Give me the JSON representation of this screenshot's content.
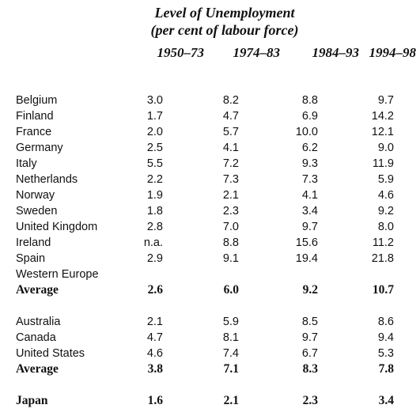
{
  "title_line1": "Level of Unemployment",
  "title_line2": "(per cent of labour force)",
  "columns": [
    "1950–73",
    "1974–83",
    "1984–93",
    "1994–98"
  ],
  "rows": [
    {
      "label": "Belgium",
      "values": [
        "3.0",
        "8.2",
        "8.8",
        "9.7"
      ]
    },
    {
      "label": "Finland",
      "values": [
        "1.7",
        "4.7",
        "6.9",
        "14.2"
      ]
    },
    {
      "label": "France",
      "values": [
        "2.0",
        "5.7",
        "10.0",
        "12.1"
      ]
    },
    {
      "label": "Germany",
      "values": [
        "2.5",
        "4.1",
        "6.2",
        "9.0"
      ]
    },
    {
      "label": "Italy",
      "values": [
        "5.5",
        "7.2",
        "9.3",
        "11.9"
      ]
    },
    {
      "label": "Netherlands",
      "values": [
        "2.2",
        "7.3",
        "7.3",
        "5.9"
      ]
    },
    {
      "label": "Norway",
      "values": [
        "1.9",
        "2.1",
        "4.1",
        "4.6"
      ]
    },
    {
      "label": "Sweden",
      "values": [
        "1.8",
        "2.3",
        "3.4",
        "9.2"
      ]
    },
    {
      "label": "United Kingdom",
      "values": [
        "2.8",
        "7.0",
        "9.7",
        "8.0"
      ]
    },
    {
      "label": "Ireland",
      "values": [
        "n.a.",
        "8.8",
        "15.6",
        "11.2"
      ]
    },
    {
      "label": "Spain",
      "values": [
        "2.9",
        "9.1",
        "19.4",
        "21.8"
      ]
    },
    {
      "label": "Western Europe",
      "values": [
        "",
        "",
        "",
        ""
      ]
    },
    {
      "label": "Average",
      "values": [
        "2.6",
        "6.0",
        "9.2",
        "10.7"
      ]
    },
    {
      "label": "Australia",
      "values": [
        "2.1",
        "5.9",
        "8.5",
        "8.6"
      ]
    },
    {
      "label": "Canada",
      "values": [
        "4.7",
        "8.1",
        "9.7",
        "9.4"
      ]
    },
    {
      "label": "United States",
      "values": [
        "4.6",
        "7.4",
        "6.7",
        "5.3"
      ]
    },
    {
      "label": "Average",
      "values": [
        "3.8",
        "7.1",
        "8.3",
        "7.8"
      ]
    },
    {
      "label": "Japan",
      "values": [
        "1.6",
        "2.1",
        "2.3",
        "3.4"
      ]
    }
  ]
}
